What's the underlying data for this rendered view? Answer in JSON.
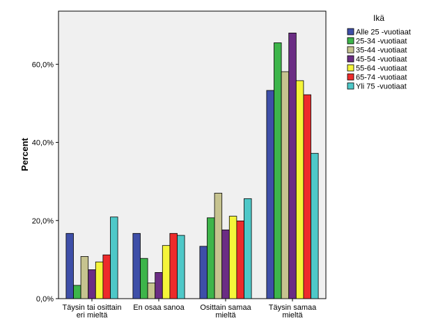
{
  "chart_data": {
    "type": "bar",
    "ylabel": "Percent",
    "ylim": [
      0,
      73.6
    ],
    "yticks": [
      0,
      20,
      40,
      60
    ],
    "ytick_labels": [
      "0,0%",
      "20,0%",
      "40,0%",
      "60,0%"
    ],
    "categories": [
      [
        "Täysin tai osittain",
        "eri mieltä"
      ],
      [
        "En osaa sanoa"
      ],
      [
        "Osittain samaa",
        "mieltä"
      ],
      [
        "Täysin samaa",
        "mieltä"
      ]
    ],
    "legend_title": "Ikä",
    "legend_placement": "right",
    "grid": false,
    "plot_background": "#f0f0f0",
    "series": [
      {
        "name": "Alle 25 -vuotiaat",
        "color": "#3e4fa8",
        "values": [
          16.7,
          16.7,
          13.4,
          53.3
        ]
      },
      {
        "name": "25-34 -vuotiaat",
        "color": "#3db54a",
        "values": [
          3.4,
          10.3,
          20.7,
          65.5
        ]
      },
      {
        "name": "35-44 -vuotiaat",
        "color": "#c6c38f",
        "values": [
          10.8,
          4.0,
          27.0,
          58.1
        ]
      },
      {
        "name": "45-54 -vuotiaat",
        "color": "#6b2d84",
        "values": [
          7.4,
          6.7,
          17.6,
          68.0
        ]
      },
      {
        "name": "55-64 -vuotiaat",
        "color": "#f5f53a",
        "values": [
          9.4,
          13.6,
          21.1,
          55.8
        ]
      },
      {
        "name": "65-74 -vuotiaat",
        "color": "#ed2b2b",
        "values": [
          11.2,
          16.7,
          19.9,
          52.2
        ]
      },
      {
        "name": "Yli 75 -vuotiaat",
        "color": "#4ec8c8",
        "values": [
          20.9,
          16.2,
          25.6,
          37.2
        ]
      }
    ]
  }
}
